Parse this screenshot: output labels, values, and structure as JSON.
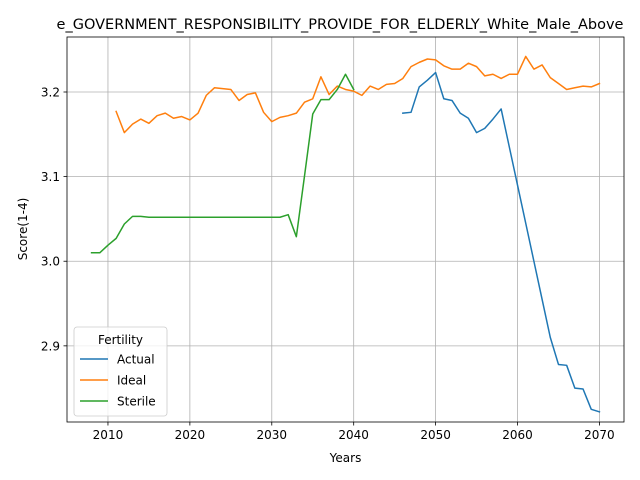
{
  "chart_data": {
    "type": "line",
    "title": "e_GOVERNMENT_RESPONSIBILITY_PROVIDE_FOR_ELDERLY_White_Male_Above",
    "xlabel": "Years",
    "ylabel": "Score(1-4)",
    "xlim": [
      2005,
      2073
    ],
    "ylim": [
      2.81,
      3.265
    ],
    "xticks": [
      2010,
      2020,
      2030,
      2040,
      2050,
      2060,
      2070
    ],
    "yticks": [
      2.9,
      3.0,
      3.1,
      3.2
    ],
    "grid": true,
    "legend": {
      "title": "Fertility",
      "placement": "lower-left"
    },
    "series": [
      {
        "name": "Actual",
        "color": "#1f77b4",
        "x": [
          2046,
          2047,
          2048,
          2049,
          2050,
          2051,
          2052,
          2053,
          2054,
          2055,
          2056,
          2057,
          2058,
          2059,
          2060,
          2061,
          2062,
          2063,
          2064,
          2065,
          2066,
          2067,
          2068,
          2069,
          2070
        ],
        "y": [
          3.175,
          3.176,
          3.206,
          3.214,
          3.223,
          3.192,
          3.19,
          3.175,
          3.169,
          3.152,
          3.157,
          3.168,
          3.18,
          3.135,
          3.09,
          3.045,
          3.0,
          2.955,
          2.91,
          2.878,
          2.877,
          2.85,
          2.849,
          2.825,
          2.822
        ]
      },
      {
        "name": "Ideal",
        "color": "#ff7f0e",
        "x": [
          2011,
          2012,
          2013,
          2014,
          2015,
          2016,
          2017,
          2018,
          2019,
          2020,
          2021,
          2022,
          2023,
          2024,
          2025,
          2026,
          2027,
          2028,
          2029,
          2030,
          2031,
          2032,
          2033,
          2034,
          2035,
          2036,
          2037,
          2038,
          2039,
          2040,
          2041,
          2042,
          2043,
          2044,
          2045,
          2046,
          2047,
          2048,
          2049,
          2050,
          2051,
          2052,
          2053,
          2054,
          2055,
          2056,
          2057,
          2058,
          2059,
          2060,
          2061,
          2062,
          2063,
          2064,
          2065,
          2066,
          2067,
          2068,
          2069,
          2070
        ],
        "y": [
          3.177,
          3.152,
          3.162,
          3.168,
          3.163,
          3.172,
          3.175,
          3.169,
          3.171,
          3.167,
          3.175,
          3.196,
          3.205,
          3.204,
          3.203,
          3.19,
          3.197,
          3.199,
          3.176,
          3.165,
          3.17,
          3.172,
          3.175,
          3.188,
          3.192,
          3.218,
          3.197,
          3.207,
          3.203,
          3.201,
          3.196,
          3.207,
          3.203,
          3.209,
          3.21,
          3.216,
          3.23,
          3.235,
          3.239,
          3.238,
          3.231,
          3.227,
          3.227,
          3.234,
          3.23,
          3.219,
          3.221,
          3.216,
          3.221,
          3.221,
          3.242,
          3.227,
          3.232,
          3.217,
          3.21,
          3.203,
          3.205,
          3.207,
          3.206,
          3.21
        ]
      },
      {
        "name": "Sterile",
        "color": "#2ca02c",
        "x": [
          2008,
          2009,
          2010,
          2011,
          2012,
          2013,
          2014,
          2015,
          2016,
          2017,
          2018,
          2019,
          2020,
          2021,
          2022,
          2023,
          2024,
          2025,
          2026,
          2027,
          2028,
          2029,
          2030,
          2031,
          2032,
          2033,
          2034,
          2035,
          2036,
          2037,
          2038,
          2039,
          2040
        ],
        "y": [
          3.01,
          3.01,
          3.019,
          3.027,
          3.044,
          3.053,
          3.053,
          3.052,
          3.052,
          3.052,
          3.052,
          3.052,
          3.052,
          3.052,
          3.052,
          3.052,
          3.052,
          3.052,
          3.052,
          3.052,
          3.052,
          3.052,
          3.052,
          3.052,
          3.055,
          3.029,
          3.101,
          3.174,
          3.191,
          3.191,
          3.203,
          3.221,
          3.203
        ]
      }
    ]
  }
}
